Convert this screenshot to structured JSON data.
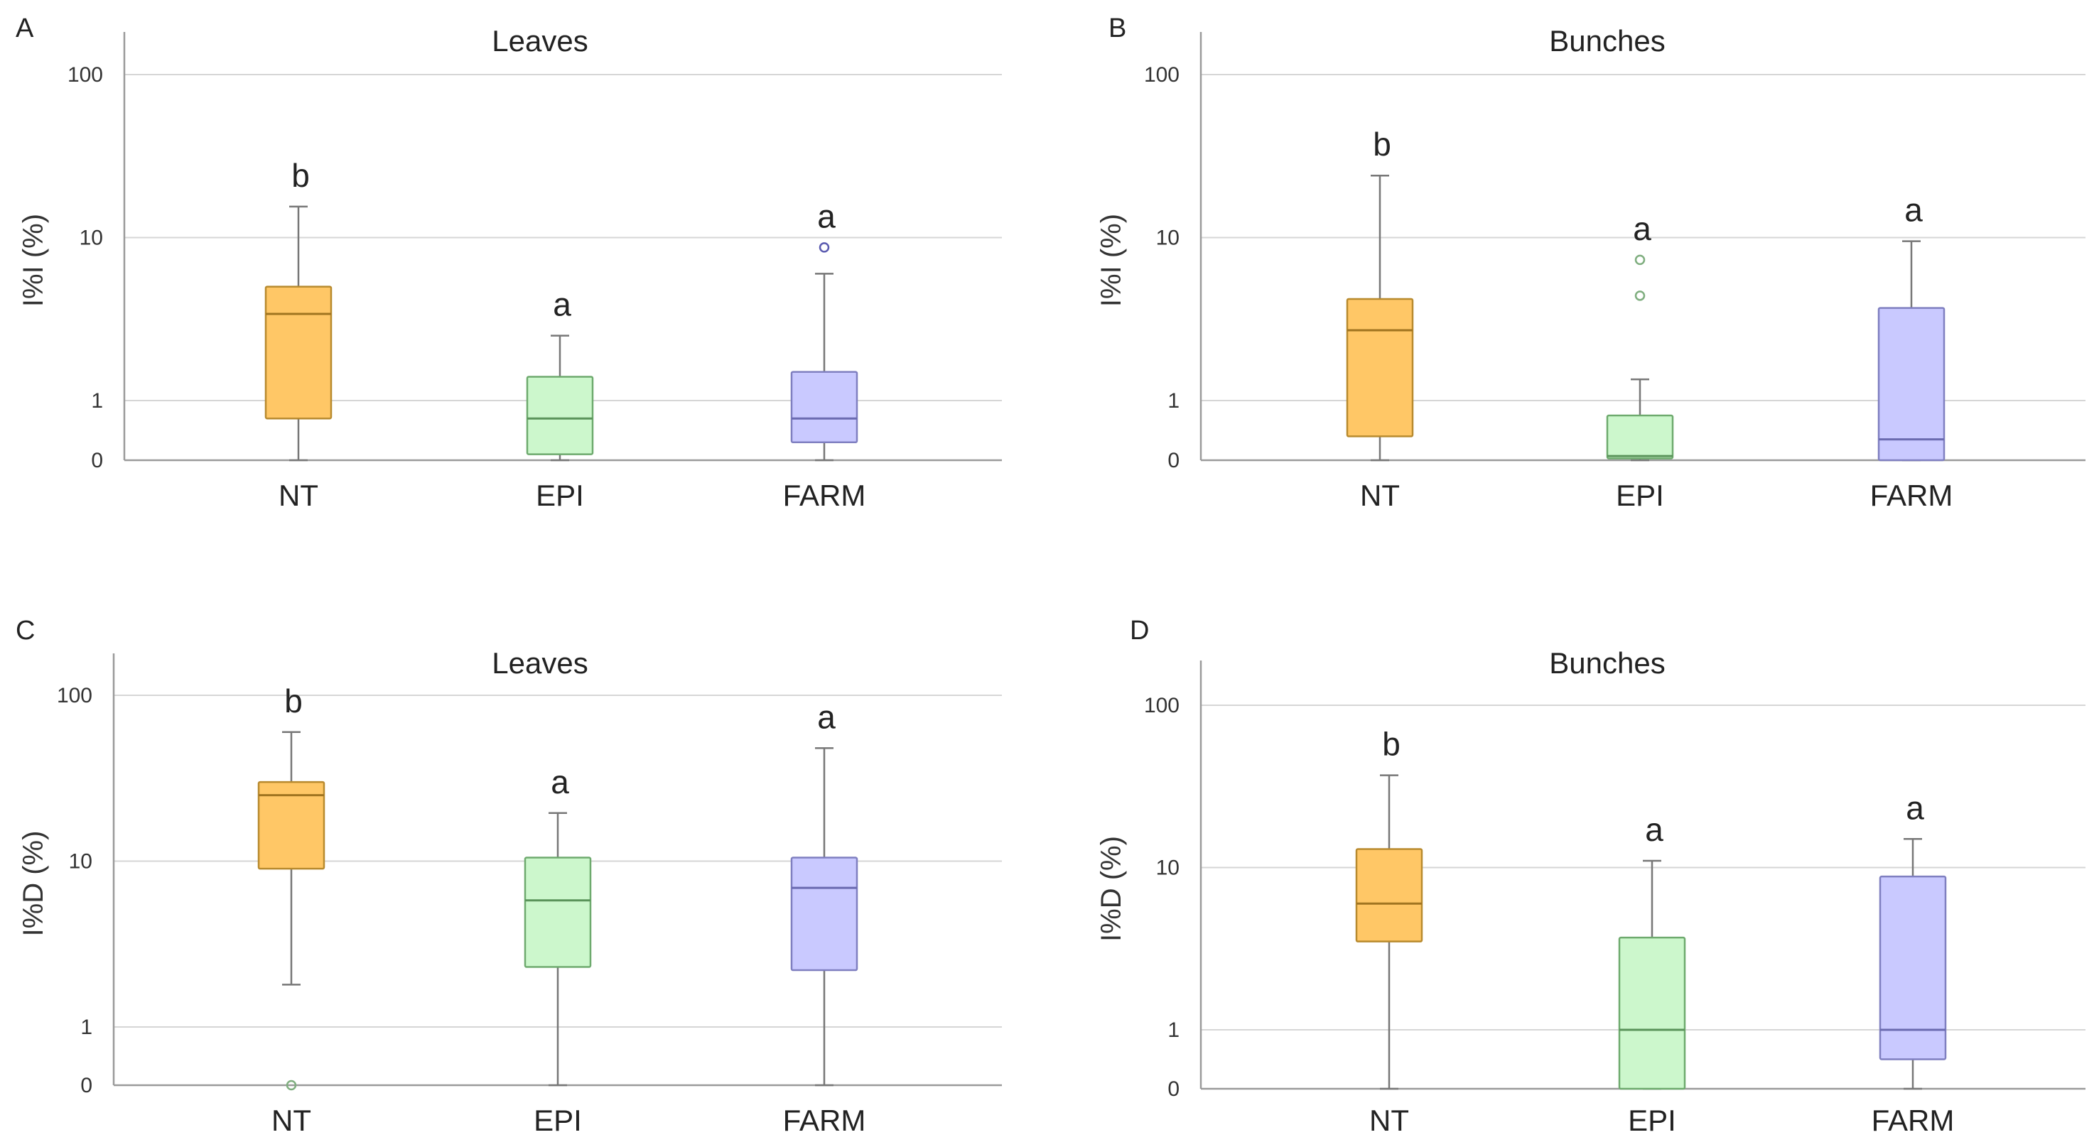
{
  "colors": {
    "NT": {
      "fill": "#ffc766",
      "stroke": "#b88a2e",
      "median": "#a07420"
    },
    "EPI": {
      "fill": "#ccf7cc",
      "stroke": "#6eaa6e",
      "median": "#5a935a"
    },
    "FARM": {
      "fill": "#c9c9ff",
      "stroke": "#7f7fc0",
      "median": "#6a6ab0"
    },
    "outlier": "#7fae7f",
    "outlier_farm": "#5b5bb0"
  },
  "chart_data": [
    {
      "panel": "A",
      "type": "box",
      "title": "Leaves",
      "ylabel": "I%I (%)",
      "scale": "symlog",
      "yticks": [
        0,
        1,
        10,
        100
      ],
      "ylim": [
        0,
        170
      ],
      "categories": [
        "NT",
        "EPI",
        "FARM"
      ],
      "boxes": [
        {
          "category": "NT",
          "min": 0,
          "q1": 0.7,
          "median": 3.4,
          "q3": 5.0,
          "max": 15.5,
          "outliers": [],
          "label": "b"
        },
        {
          "category": "EPI",
          "min": 0,
          "q1": 0.1,
          "median": 0.7,
          "q3": 1.4,
          "max": 2.5,
          "outliers": [],
          "label": "a"
        },
        {
          "category": "FARM",
          "min": 0,
          "q1": 0.3,
          "median": 0.7,
          "q3": 1.5,
          "max": 6.0,
          "outliers": [
            8.7
          ],
          "label": "a"
        }
      ]
    },
    {
      "panel": "B",
      "type": "box",
      "title": "Bunches",
      "ylabel": "I%I (%)",
      "scale": "symlog",
      "yticks": [
        0,
        1,
        10,
        100
      ],
      "ylim": [
        0,
        170
      ],
      "categories": [
        "NT",
        "EPI",
        "FARM"
      ],
      "boxes": [
        {
          "category": "NT",
          "min": 0,
          "q1": 0.4,
          "median": 2.7,
          "q3": 4.2,
          "max": 24.0,
          "outliers": [],
          "label": "b"
        },
        {
          "category": "EPI",
          "min": 0,
          "q1": 0.03,
          "median": 0.07,
          "q3": 0.75,
          "max": 1.35,
          "outliers": [
            4.4,
            7.3
          ],
          "label": "a"
        },
        {
          "category": "FARM",
          "min": 0,
          "q1": 0,
          "median": 0.35,
          "q3": 3.7,
          "max": 9.5,
          "outliers": [],
          "label": "a"
        }
      ]
    },
    {
      "panel": "C",
      "type": "box",
      "title": "Leaves",
      "ylabel": "I%D (%)",
      "scale": "symlog",
      "yticks": [
        0,
        1,
        10,
        100
      ],
      "ylim": [
        0,
        180
      ],
      "categories": [
        "NT",
        "EPI",
        "FARM"
      ],
      "boxes": [
        {
          "category": "NT",
          "min": 1.8,
          "q1": 9.0,
          "median": 25.0,
          "q3": 30.0,
          "max": 60.0,
          "outliers": [
            0
          ],
          "label": "b"
        },
        {
          "category": "EPI",
          "min": 0,
          "q1": 2.3,
          "median": 5.8,
          "q3": 10.5,
          "max": 19.5,
          "outliers": [],
          "label": "a"
        },
        {
          "category": "FARM",
          "min": 0,
          "q1": 2.2,
          "median": 6.9,
          "q3": 10.5,
          "max": 48.0,
          "outliers": [],
          "label": "a"
        }
      ]
    },
    {
      "panel": "D",
      "type": "box",
      "title": "Bunches",
      "ylabel": "I%D (%)",
      "scale": "symlog",
      "yticks": [
        0,
        1,
        10,
        100
      ],
      "ylim": [
        0,
        170
      ],
      "categories": [
        "NT",
        "EPI",
        "FARM"
      ],
      "boxes": [
        {
          "category": "NT",
          "min": 0,
          "q1": 3.5,
          "median": 6.0,
          "q3": 13.0,
          "max": 37.0,
          "outliers": [],
          "label": "b"
        },
        {
          "category": "EPI",
          "min": 0,
          "q1": 0,
          "median": 1.0,
          "q3": 3.7,
          "max": 11.0,
          "outliers": [],
          "label": "a"
        },
        {
          "category": "FARM",
          "min": 0,
          "q1": 0.5,
          "median": 1.0,
          "q3": 8.8,
          "max": 15.0,
          "outliers": [],
          "label": "a"
        }
      ]
    }
  ]
}
